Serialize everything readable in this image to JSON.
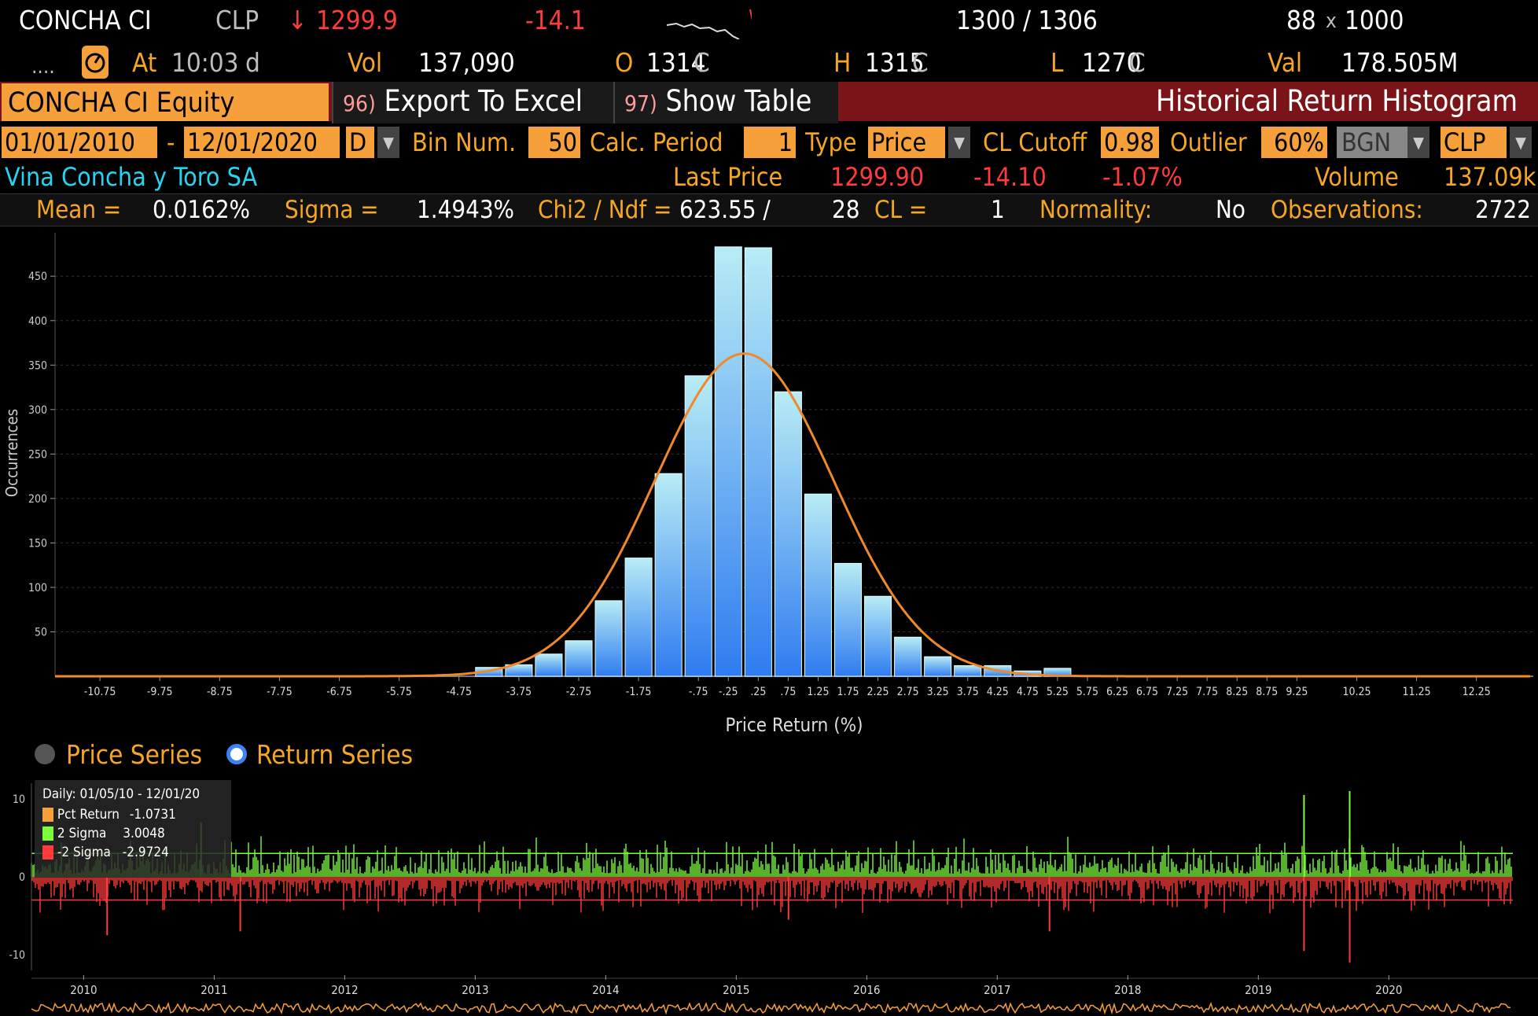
{
  "ticker": {
    "name": "CONCHA CI",
    "currency": "CLP",
    "arrow": "↓",
    "price": "1299.9",
    "change": "-14.1",
    "bid_ask": "1300 / 1306",
    "size_bid": "88",
    "size_x": "x",
    "size_ask": "1000",
    "dots": "....",
    "time_label": "At",
    "time": "10:03",
    "time_suffix": "d",
    "vol_label": "Vol",
    "vol": "137,090",
    "open_label": "O",
    "open": "1314",
    "open_suffix": "C",
    "high_label": "H",
    "high": "1315",
    "high_suffix": "C",
    "low_label": "L",
    "low": "1270",
    "low_suffix": "C",
    "val_label": "Val",
    "val": "178.505M"
  },
  "toolbar": {
    "security": "CONCHA CI Equity",
    "export_num": "96)",
    "export_label": "Export To Excel",
    "table_num": "97)",
    "table_label": "Show Table",
    "title": "Historical Return Histogram"
  },
  "params": {
    "start_date": "01/01/2010",
    "dash": "-",
    "end_date": "12/01/2020",
    "periodicity": "D",
    "bin_label": "Bin Num.",
    "bin_value": "50",
    "calc_label": "Calc. Period",
    "calc_value": "1",
    "type_label": "Type",
    "type_value": "Price",
    "cutoff_label": "CL Cutoff",
    "cutoff_value": "0.98",
    "outlier_label": "Outlier",
    "outlier_value": "60%",
    "source_value": "BGN",
    "currency_value": "CLP"
  },
  "info": {
    "company": "Vina Concha y Toro SA",
    "last_price_label": "Last Price",
    "last_price": "1299.90",
    "net_change": "-14.10",
    "pct_change": "-1.07%",
    "volume_label": "Volume",
    "volume": "137.09k"
  },
  "stats": {
    "mean_label": "Mean =",
    "mean": "0.0162%",
    "sigma_label": "Sigma =",
    "sigma": "1.4943%",
    "chi_label": "Chi2 / Ndf =",
    "chi": "623.55 /",
    "ndf": "28",
    "cl_label": "CL =",
    "cl": "1",
    "normality_label": "Normality:",
    "normality": "No",
    "obs_label": "Observations:",
    "obs": "2722"
  },
  "series_toggle": {
    "price_label": "Price Series",
    "return_label": "Return Series",
    "selected": "Return Series"
  },
  "colors": {
    "accent_orange": "#f5a03a",
    "label_orange": "#f6a623",
    "header_red": "#7a1418",
    "neg_red": "#ff3b3b",
    "bar_top": "#b8ecf5",
    "bar_bottom": "#2f7cf0",
    "fit_line": "#f0892b",
    "pos_green": "#7cff3a"
  },
  "chart_data": [
    {
      "type": "bar",
      "title": "",
      "xlabel": "Price Return (%)",
      "ylabel": "Occurrences",
      "ylim": [
        0,
        490
      ],
      "yticks": [
        50,
        100,
        150,
        200,
        250,
        300,
        350,
        400,
        450
      ],
      "xlim": [
        -11.5,
        13.2
      ],
      "xtick_labels": [
        "-10.75",
        "-9.75",
        "-8.75",
        "-7.75",
        "-6.75",
        "-5.75",
        "-4.75",
        "-3.75",
        "-2.75",
        "-1.75",
        "-.75",
        "-.25",
        ".25",
        ".75",
        "1.25",
        "1.75",
        "2.25",
        "2.75",
        "3.25",
        "3.75",
        "4.25",
        "4.75",
        "5.25",
        "5.75",
        "6.25",
        "6.75",
        "7.25",
        "7.75",
        "8.25",
        "8.75",
        "9.25",
        "10.25",
        "11.25",
        "12.25"
      ],
      "xtick_values": [
        -10.75,
        -9.75,
        -8.75,
        -7.75,
        -6.75,
        -5.75,
        -4.75,
        -3.75,
        -2.75,
        -1.75,
        -0.75,
        -0.25,
        0.25,
        0.75,
        1.25,
        1.75,
        2.25,
        2.75,
        3.25,
        3.75,
        4.25,
        4.75,
        5.25,
        5.75,
        6.25,
        6.75,
        7.25,
        7.75,
        8.25,
        8.75,
        9.25,
        10.25,
        11.25,
        12.25
      ],
      "bins": [
        {
          "x": -4.25,
          "count": 10
        },
        {
          "x": -3.75,
          "count": 13
        },
        {
          "x": -3.25,
          "count": 25
        },
        {
          "x": -2.75,
          "count": 40
        },
        {
          "x": -2.25,
          "count": 85
        },
        {
          "x": -1.75,
          "count": 133
        },
        {
          "x": -1.25,
          "count": 228
        },
        {
          "x": -0.75,
          "count": 338
        },
        {
          "x": -0.25,
          "count": 483
        },
        {
          "x": 0.25,
          "count": 482
        },
        {
          "x": 0.75,
          "count": 320
        },
        {
          "x": 1.25,
          "count": 205
        },
        {
          "x": 1.75,
          "count": 127
        },
        {
          "x": 2.25,
          "count": 90
        },
        {
          "x": 2.75,
          "count": 44
        },
        {
          "x": 3.25,
          "count": 22
        },
        {
          "x": 3.75,
          "count": 12
        },
        {
          "x": 4.25,
          "count": 12
        },
        {
          "x": 4.75,
          "count": 6
        },
        {
          "x": 5.25,
          "count": 9
        }
      ],
      "fit": {
        "type": "normal",
        "peak": 363,
        "mean": 0.0162,
        "sigma": 1.4943
      },
      "grid": true
    },
    {
      "type": "line",
      "legend": {
        "header": "Daily: 01/05/10 - 12/01/20",
        "items": [
          {
            "name": "Pct Return",
            "value": "-1.0731",
            "color": "#f5a03a"
          },
          {
            "name": "2 Sigma",
            "value": "3.0048",
            "color": "#7cff3a"
          },
          {
            "name": "-2 Sigma",
            "value": "-2.9724",
            "color": "#ff3b3b"
          }
        ]
      },
      "ylim": [
        -12,
        12
      ],
      "yticks": [
        10,
        0,
        -10
      ],
      "x_labels": [
        "2010",
        "2011",
        "2012",
        "2013",
        "2014",
        "2015",
        "2016",
        "2017",
        "2018",
        "2019",
        "2020"
      ],
      "upper_band": 3.0048,
      "lower_band": -2.9724,
      "spikes": [
        {
          "year": 2010.18,
          "value": -7.5
        },
        {
          "year": 2010.9,
          "value": 7
        },
        {
          "year": 2011.2,
          "value": -7
        },
        {
          "year": 2015.4,
          "value": -5.5
        },
        {
          "year": 2017.4,
          "value": -7
        },
        {
          "year": 2019.35,
          "value": 10.5
        },
        {
          "year": 2019.35,
          "value": -9.5
        },
        {
          "year": 2019.7,
          "value": 11
        },
        {
          "year": 2019.7,
          "value": -11
        }
      ]
    }
  ]
}
